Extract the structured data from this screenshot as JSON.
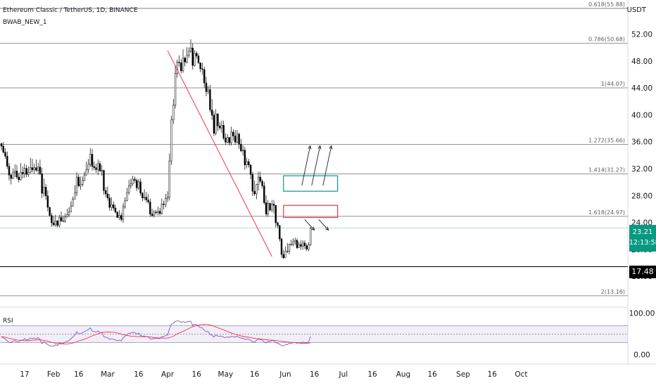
{
  "header": {
    "symbol_line": "Ethereum Classic / TetherUS, 1D, BINANCE",
    "indicator_name": "BWAB_NEW_1",
    "currency": "USDT"
  },
  "rsi_label": "RSI",
  "price_tag": {
    "price": "23.21",
    "countdown": "12:13:58",
    "color": "#089981"
  },
  "support_tag": {
    "price": "17.48",
    "color": "#000000"
  },
  "chart_data": [
    {
      "type": "candlestick",
      "title": "Ethereum Classic / TetherUS, 1D, BINANCE",
      "ylabel": "USDT",
      "ylim": [
        12.0,
        56.5
      ],
      "y_ticks": [
        "52.00",
        "48.00",
        "44.00",
        "40.00",
        "36.00",
        "32.00",
        "28.00",
        "24.00",
        "20.00",
        "16.00"
      ],
      "x_ticks": [
        "17",
        "Feb",
        "16",
        "Mar",
        "16",
        "Apr",
        "16",
        "May",
        "16",
        "Jun",
        "16",
        "Jul",
        "16",
        "Aug",
        "16",
        "Sep",
        "16",
        "Oct"
      ],
      "fib_levels": [
        {
          "label": "0.618(55.88)",
          "value": 55.88
        },
        {
          "label": "0.786(50.68)",
          "value": 50.68
        },
        {
          "label": "1(44.07)",
          "value": 44.07
        },
        {
          "label": "1.272(35.66)",
          "value": 35.66
        },
        {
          "label": "1.414(31.27)",
          "value": 31.27
        },
        {
          "label": "1.618(24.97)",
          "value": 24.97
        },
        {
          "label": "2(13.16)",
          "value": 13.16
        }
      ],
      "support_level": 17.48,
      "current_price": 23.21,
      "trendline": {
        "from": {
          "x": "Apr 1",
          "y": 49.6
        },
        "to": {
          "x": "May 25",
          "y": 19.0
        },
        "color": "#f23645"
      },
      "zones": [
        {
          "kind": "bullish",
          "color": "#089981",
          "top": 31.0,
          "bottom": 28.7,
          "from": "May 31",
          "to": "Jun 28"
        },
        {
          "kind": "bearish",
          "color": "#f23645",
          "top": 26.6,
          "bottom": 24.8,
          "from": "May 31",
          "to": "Jun 28"
        }
      ],
      "series": [
        {
          "closes": [
            35.4,
            34.5,
            33.9,
            32.4,
            31.1,
            30.6,
            31.5,
            31.7,
            30.8,
            30.4,
            31.5,
            31.3,
            32.1,
            31.2,
            31.5,
            32.2,
            31.9,
            32.2,
            31.8,
            32.3,
            31.3,
            28.4,
            29.3,
            28.0,
            26.3,
            25.1,
            24.0,
            23.7,
            24.3,
            23.6,
            24.8,
            24.3,
            24.3,
            24.9,
            25.2,
            25.6,
            26.5,
            27.5,
            28.5,
            30.8,
            29.5,
            29.7,
            30.3,
            31.1,
            31.9,
            32.7,
            34.2,
            32.4,
            32.2,
            31.9,
            32.8,
            31.7,
            31.8,
            28.8,
            28.3,
            27.7,
            26.3,
            26.7,
            26.2,
            25.6,
            24.8,
            25.1,
            24.5,
            26.4,
            27.3,
            28.5,
            29.5,
            29.8,
            30.5,
            30.3,
            29.2,
            30.1,
            28.4,
            27.7,
            27.8,
            27.4,
            27.1,
            25.3,
            25.1,
            25.6,
            25.5,
            25.7,
            25.4,
            26.8,
            26.7,
            27.6,
            27.8,
            33.2,
            39.3,
            41.5,
            46.2,
            47.9,
            47.8,
            46.6,
            48.5,
            47.9,
            48.9,
            49.5,
            50.0,
            47.4,
            49.2,
            48.8,
            47.8,
            46.9,
            46.8,
            44.8,
            43.5,
            43.8,
            40.8,
            40.0,
            37.3,
            40.2,
            38.4,
            38.1,
            38.5,
            36.6,
            36.0,
            36.7,
            35.9,
            37.5,
            36.9,
            36.0,
            37.2,
            35.7,
            34.7,
            34.8,
            32.6,
            33.1,
            32.6,
            31.2,
            28.7,
            28.3,
            29.7,
            30.8,
            30.2,
            29.5,
            27.0,
            25.3,
            26.9,
            25.9,
            26.8,
            26.6,
            24.0,
            23.6,
            21.6,
            19.3,
            18.8,
            19.8,
            19.8,
            20.8,
            20.8,
            21.2,
            21.4,
            20.3,
            20.8,
            20.5,
            21.0,
            20.6,
            20.1,
            20.7,
            23.2
          ],
          "highs": [
            35.8,
            36.0,
            35.1,
            34.6,
            32.9,
            31.3,
            32.1,
            32.7,
            32.6,
            31.4,
            32.9,
            32.4,
            32.8,
            32.6,
            32.4,
            33.7,
            33.5,
            32.8,
            33.4,
            32.9,
            33.4,
            32.2,
            30.6,
            29.8,
            28.8,
            26.4,
            25.5,
            25.0,
            25.2,
            24.4,
            25.2,
            25.7,
            25.1,
            25.4,
            26.1,
            26.3,
            27.2,
            27.9,
            29.6,
            31.5,
            31.2,
            30.9,
            30.9,
            31.6,
            33.1,
            33.5,
            35.1,
            35.0,
            33.1,
            32.8,
            33.4,
            33.2,
            32.6,
            31.9,
            29.3,
            29.4,
            28.3,
            27.8,
            27.2,
            26.7,
            25.7,
            25.9,
            25.5,
            26.9,
            27.8,
            29.2,
            30.4,
            30.6,
            31.0,
            30.9,
            30.6,
            30.5,
            30.6,
            28.6,
            29.0,
            28.6,
            28.3,
            27.6,
            26.1,
            25.9,
            25.9,
            26.4,
            26.2,
            27.6,
            27.3,
            28.3,
            28.7,
            34.3,
            39.9,
            42.4,
            47.4,
            48.3,
            48.9,
            48.3,
            49.8,
            48.7,
            50.1,
            50.1,
            51.3,
            50.7,
            49.7,
            49.5,
            49.2,
            47.6,
            47.8,
            47.2,
            45.7,
            44.4,
            44.5,
            42.4,
            40.6,
            40.9,
            40.3,
            39.0,
            39.2,
            39.2,
            37.3,
            37.2,
            36.5,
            38.3,
            37.9,
            37.8,
            37.8,
            37.4,
            36.5,
            35.5,
            35.3,
            33.7,
            33.5,
            32.7,
            31.6,
            30.3,
            29.8,
            31.6,
            31.6,
            30.5,
            30.1,
            28.1,
            27.4,
            27.0,
            27.4,
            27.4,
            26.6,
            24.2,
            23.7,
            21.8,
            20.0,
            20.5,
            21.0,
            20.9,
            21.5,
            21.7,
            21.8,
            21.7,
            21.2,
            21.4,
            21.4,
            21.4,
            20.9,
            21.1,
            23.4
          ],
          "lows": [
            34.8,
            34.3,
            33.5,
            32.0,
            30.3,
            29.7,
            30.5,
            30.8,
            30.5,
            30.0,
            30.3,
            30.6,
            30.7,
            30.8,
            30.8,
            31.4,
            31.5,
            31.3,
            31.6,
            31.2,
            31.1,
            27.7,
            27.9,
            27.4,
            25.7,
            24.9,
            23.4,
            23.5,
            23.4,
            23.3,
            23.3,
            24.1,
            24.1,
            24.0,
            24.8,
            24.9,
            25.7,
            26.4,
            27.6,
            28.0,
            29.3,
            28.9,
            29.4,
            30.2,
            31.3,
            31.4,
            32.3,
            31.8,
            31.8,
            31.4,
            31.1,
            31.6,
            31.0,
            28.2,
            27.8,
            27.3,
            25.8,
            25.8,
            25.8,
            25.4,
            24.7,
            24.4,
            24.2,
            24.0,
            26.1,
            27.2,
            28.2,
            29.1,
            29.5,
            29.9,
            28.7,
            28.9,
            28.0,
            27.2,
            27.4,
            27.0,
            26.8,
            24.9,
            24.9,
            24.8,
            25.2,
            25.1,
            25.1,
            25.2,
            26.0,
            26.3,
            27.1,
            27.3,
            32.6,
            38.7,
            41.0,
            45.6,
            47.2,
            46.2,
            46.3,
            47.3,
            47.7,
            48.5,
            49.3,
            46.8,
            47.2,
            48.4,
            47.6,
            46.4,
            46.0,
            44.1,
            42.8,
            43.1,
            40.4,
            39.3,
            36.9,
            37.0,
            37.6,
            37.8,
            37.4,
            36.3,
            35.6,
            35.8,
            35.5,
            35.5,
            36.2,
            35.6,
            35.8,
            35.0,
            34.5,
            34.0,
            31.9,
            32.1,
            32.2,
            30.5,
            28.0,
            28.0,
            27.5,
            28.8,
            29.9,
            29.1,
            26.7,
            25.0,
            24.9,
            25.7,
            25.6,
            25.4,
            23.3,
            23.2,
            21.2,
            18.8,
            18.6,
            18.9,
            19.5,
            19.3,
            20.6,
            20.5,
            20.7,
            20.1,
            20.3,
            20.0,
            20.0,
            20.1,
            19.8,
            19.8,
            20.6
          ],
          "rsi": [
            44.1,
            40.7,
            38.5,
            33.7,
            30.2,
            29.1,
            33.4,
            34.3,
            31.2,
            30.0,
            35.8,
            35.0,
            39.2,
            35.5,
            37.1,
            40.6,
            39.1,
            40.7,
            38.5,
            41.5,
            36.7,
            26.9,
            31.8,
            28.0,
            24.5,
            22.5,
            21.0,
            20.6,
            24.5,
            22.3,
            29.1,
            27.4,
            27.4,
            30.7,
            32.3,
            34.4,
            38.9,
            43.4,
            47.5,
            55.9,
            50.5,
            51.2,
            53.4,
            56.1,
            58.7,
            61.1,
            65.1,
            57.1,
            56.3,
            55.1,
            57.9,
            53.5,
            53.9,
            43.9,
            42.6,
            41.0,
            37.3,
            38.8,
            37.5,
            36.0,
            34.1,
            35.3,
            33.7,
            41.3,
            44.6,
            48.6,
            51.8,
            52.7,
            54.6,
            53.9,
            49.9,
            52.6,
            47.0,
            45.0,
            45.2,
            44.1,
            43.3,
            38.4,
            37.9,
            39.6,
            39.3,
            40.0,
            39.2,
            44.1,
            43.8,
            47.0,
            47.8,
            63.1,
            73.8,
            76.3,
            80.5,
            81.8,
            81.6,
            77.9,
            80.3,
            78.4,
            79.7,
            80.5,
            81.2,
            71.1,
            73.9,
            72.4,
            68.8,
            65.7,
            65.4,
            59.0,
            55.6,
            56.3,
            49.3,
            47.8,
            42.9,
            48.4,
            45.3,
            44.8,
            45.6,
            42.6,
            41.7,
            43.3,
            41.8,
            45.3,
            44.2,
            42.5,
            45.0,
            42.2,
            40.4,
            40.6,
            37.0,
            38.3,
            37.4,
            35.1,
            31.5,
            30.9,
            35.0,
            38.0,
            36.9,
            35.5,
            31.2,
            28.7,
            33.2,
            31.8,
            34.5,
            34.0,
            29.1,
            28.4,
            25.4,
            22.3,
            21.7,
            24.8,
            24.8,
            28.1,
            28.1,
            29.4,
            30.1,
            27.9,
            29.6,
            29.0,
            31.0,
            29.9,
            28.8,
            31.7,
            44.4
          ],
          "rsi_ma": [
            44.0,
            43.3,
            42.5,
            41.3,
            40.0,
            38.9,
            37.9,
            37.0,
            36.0,
            35.2,
            34.9,
            34.6,
            34.3,
            34.1,
            34.3,
            34.7,
            35.2,
            35.6,
            35.7,
            36.1,
            36.4,
            35.5,
            35.0,
            34.1,
            33.1,
            31.8,
            30.4,
            29.1,
            28.2,
            27.1,
            26.7,
            26.5,
            26.2,
            26.0,
            26.0,
            26.8,
            27.6,
            28.6,
            29.9,
            31.9,
            33.5,
            34.9,
            36.3,
            37.9,
            39.6,
            41.6,
            44.0,
            45.9,
            47.5,
            49.1,
            51.1,
            52.7,
            54.2,
            54.6,
            54.9,
            55.2,
            55.1,
            54.8,
            54.5,
            53.8,
            52.7,
            51.6,
            50.1,
            48.8,
            47.9,
            47.0,
            46.1,
            45.3,
            44.8,
            44.6,
            44.3,
            44.3,
            44.0,
            43.9,
            43.8,
            43.8,
            43.5,
            43.0,
            42.3,
            41.9,
            41.3,
            41.0,
            40.5,
            40.4,
            40.3,
            40.3,
            40.5,
            41.5,
            43.2,
            45.1,
            47.6,
            50.3,
            52.5,
            54.5,
            56.6,
            58.8,
            61.0,
            63.5,
            66.1,
            67.7,
            69.2,
            70.6,
            71.8,
            72.7,
            73.4,
            73.7,
            73.4,
            73.0,
            71.8,
            70.6,
            68.9,
            67.3,
            65.5,
            63.8,
            62.1,
            60.3,
            58.4,
            56.5,
            54.6,
            52.8,
            51.2,
            49.6,
            48.5,
            47.1,
            45.7,
            44.9,
            44.0,
            43.2,
            42.4,
            41.7,
            40.7,
            39.8,
            39.2,
            38.8,
            38.4,
            38.0,
            37.3,
            36.5,
            36.1,
            35.7,
            35.4,
            35.1,
            34.6,
            34.1,
            33.6,
            32.9,
            32.2,
            31.6,
            31.0,
            30.5,
            30.1,
            29.7,
            29.3,
            28.9,
            28.5,
            28.2,
            27.9,
            27.8,
            27.8,
            28.1,
            29.3
          ]
        }
      ],
      "rsi_panel": {
        "ylim": [
          0,
          100
        ],
        "y_ticks": [
          "100.00",
          "0.00"
        ],
        "band": [
          30,
          70
        ],
        "mid": 50
      }
    }
  ]
}
